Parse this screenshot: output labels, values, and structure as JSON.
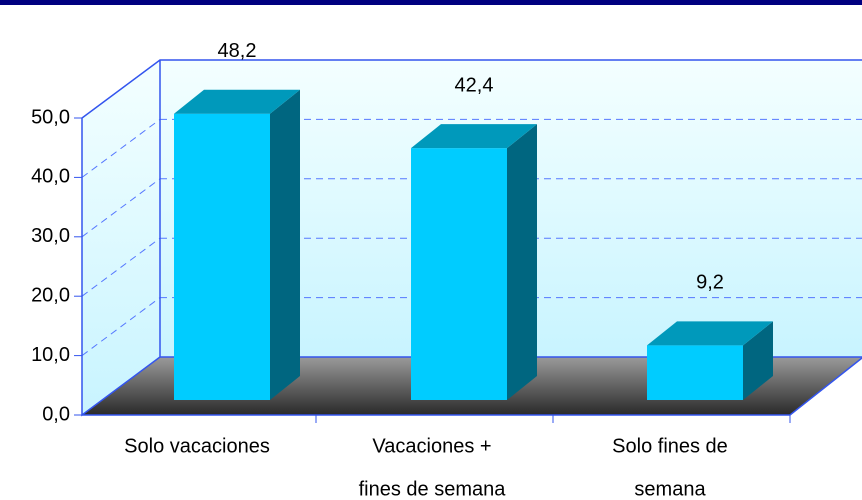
{
  "chart_data": {
    "type": "bar3d",
    "categories": [
      [
        "Solo vacaciones"
      ],
      [
        "Vacaciones +",
        "fines de semana"
      ],
      [
        "Solo fines de",
        "semana"
      ]
    ],
    "values": [
      48.2,
      42.4,
      9.2
    ],
    "value_labels": [
      "48,2",
      "42,4",
      "9,2"
    ],
    "color": "#00ccff",
    "ylim": [
      0,
      50
    ],
    "yticks": [
      {
        "value": 0,
        "label": "0,0"
      },
      {
        "value": 10,
        "label": "10,0"
      },
      {
        "value": 20,
        "label": "20,0"
      },
      {
        "value": 30,
        "label": "30,0"
      },
      {
        "value": 40,
        "label": "40,0"
      },
      {
        "value": 50,
        "label": "50,0"
      }
    ],
    "grid": true
  }
}
